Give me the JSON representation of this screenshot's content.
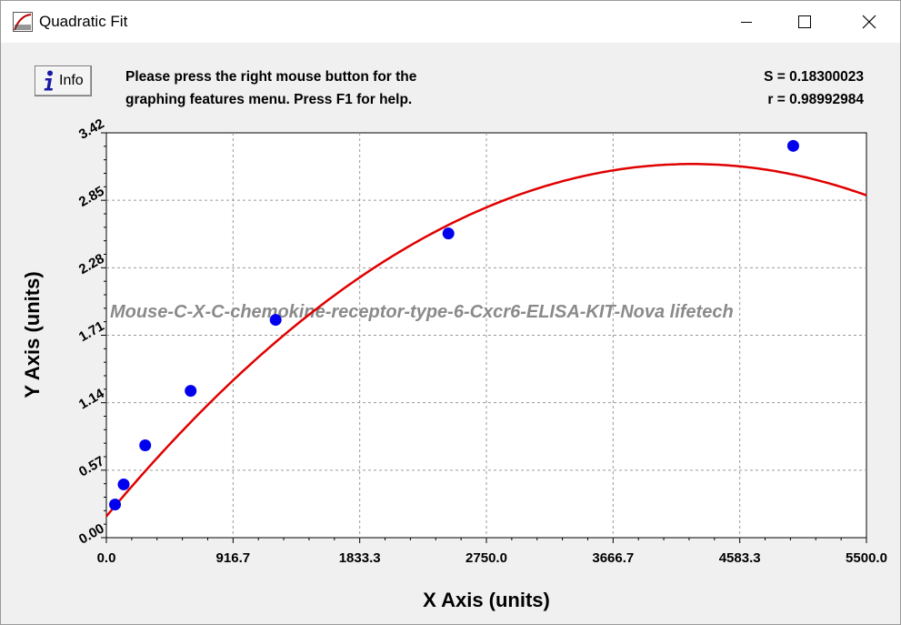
{
  "window": {
    "title": "Quadratic Fit",
    "app_icon": "curve-fit-app-icon",
    "controls": {
      "minimize": "minimize-icon",
      "maximize": "maximize-icon",
      "close": "close-icon"
    }
  },
  "toolbar": {
    "info_label": "Info",
    "info_icon": "info-icon",
    "help_line1": "Please press the right mouse button for the",
    "help_line2": "graphing features menu.  Press F1 for help."
  },
  "stats": {
    "s_text": "S = 0.18300023",
    "r_text": "r = 0.98992984"
  },
  "chart_data": {
    "type": "scatter",
    "title": "",
    "xlabel": "X Axis (units)",
    "ylabel": "Y Axis (units)",
    "xlim": [
      0,
      5500
    ],
    "ylim": [
      0,
      3.42
    ],
    "x_ticks": [
      "0.0",
      "916.7",
      "1833.3",
      "2750.0",
      "3666.7",
      "4583.3",
      "5500.0"
    ],
    "y_ticks": [
      "0.00",
      "0.57",
      "1.14",
      "1.71",
      "2.28",
      "2.85",
      "3.42"
    ],
    "grid": true,
    "watermark": "Mouse-C-X-C-chemokine-receptor-type-6-Cxcr6-ELISA-KIT-Nova lifetech",
    "series": [
      {
        "kind": "points",
        "color": "#0000ee",
        "x": [
          62.5,
          125,
          281,
          610,
          1225,
          2475,
          4970
        ],
        "y": [
          0.28,
          0.45,
          0.78,
          1.24,
          1.84,
          2.57,
          3.31
        ]
      },
      {
        "kind": "fit-curve",
        "color": "#e00000",
        "equation": "y = a + b*x + c*x^2",
        "coefficients": {
          "a": 0.18,
          "b": 0.001405,
          "c": -1.658e-07
        }
      }
    ]
  }
}
